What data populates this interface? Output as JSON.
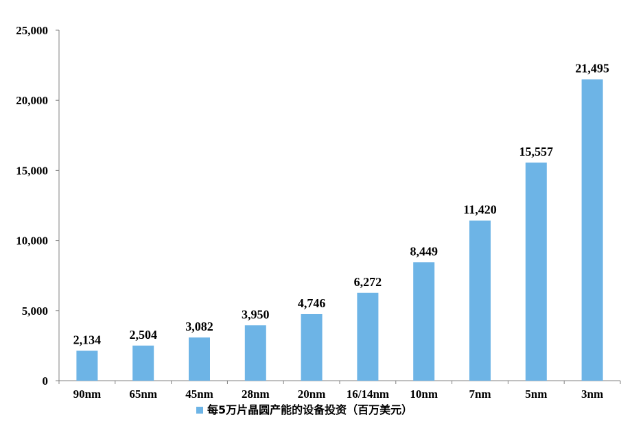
{
  "chart_data": {
    "type": "bar",
    "categories": [
      "90nm",
      "65nm",
      "45nm",
      "28nm",
      "20nm",
      "16/14nm",
      "10nm",
      "7nm",
      "5nm",
      "3nm"
    ],
    "series": [
      {
        "name": "每5万片晶圆产能的设备投资（百万美元）",
        "values": [
          2134,
          2504,
          3082,
          3950,
          4746,
          6272,
          8449,
          11420,
          15557,
          21495
        ],
        "value_labels": [
          "2,134",
          "2,504",
          "3,082",
          "3,950",
          "4,746",
          "6,272",
          "8,449",
          "11,420",
          "15,557",
          "21,495"
        ],
        "color": "#6DB4E6"
      }
    ],
    "ylim": [
      0,
      25000
    ],
    "yticks": [
      0,
      5000,
      10000,
      15000,
      20000,
      25000
    ],
    "ytick_labels": [
      "0",
      "5,000",
      "10,000",
      "15,000",
      "20,000",
      "25,000"
    ],
    "title": "",
    "xlabel": "",
    "ylabel": "",
    "grid": false,
    "legend_position": "bottom"
  }
}
